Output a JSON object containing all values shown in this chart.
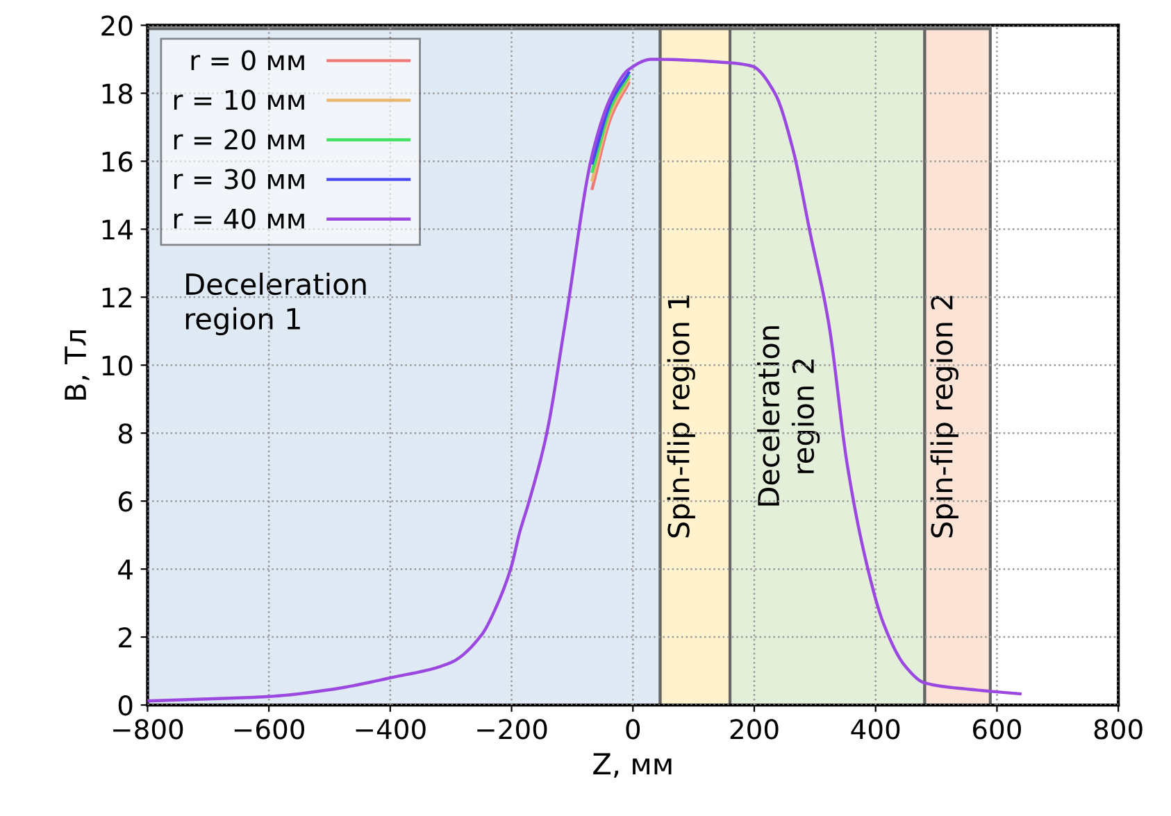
{
  "chart_data": {
    "type": "line",
    "xlabel": "Z, мм",
    "ylabel": "B, Тл",
    "xlim": [
      -800,
      800
    ],
    "xticks": [
      {
        "value": -800,
        "label": "−800"
      },
      {
        "value": -600,
        "label": "−600"
      },
      {
        "value": -400,
        "label": "−400"
      },
      {
        "value": -200,
        "label": "−200"
      },
      0,
      200,
      400,
      600,
      800
    ],
    "ylim": [
      0,
      20
    ],
    "yticks": [
      0,
      2,
      4,
      6,
      8,
      10,
      12,
      14,
      16,
      18,
      20
    ],
    "grid": true,
    "legend": "top left",
    "line_style": "solid",
    "x": [
      -800,
      -700,
      -600,
      -500,
      -400,
      -300,
      -250,
      -225,
      -200,
      -187,
      -171,
      -142,
      -112,
      -67,
      -36,
      -7,
      31,
      157,
      196,
      234,
      263,
      292,
      323,
      353,
      382,
      413,
      449,
      481,
      562,
      638
    ],
    "series": [
      {
        "name": "r = 0 мм",
        "color": "#f07878",
        "values": [
          null,
          null,
          null,
          null,
          null,
          null,
          null,
          null,
          null,
          null,
          null,
          null,
          null,
          15.2,
          17.3,
          18.3,
          null,
          null,
          null,
          null,
          null,
          null,
          null,
          null,
          null,
          null,
          null,
          null,
          null,
          null
        ]
      },
      {
        "name": "r = 10 мм",
        "color": "#e8b870",
        "values": [
          null,
          null,
          null,
          null,
          null,
          null,
          null,
          null,
          null,
          null,
          null,
          null,
          null,
          15.45,
          17.45,
          18.4,
          null,
          null,
          null,
          null,
          null,
          null,
          null,
          null,
          null,
          null,
          null,
          null,
          null,
          null
        ]
      },
      {
        "name": "r = 20 мм",
        "color": "#40e060",
        "values": [
          null,
          null,
          null,
          null,
          null,
          null,
          null,
          null,
          null,
          null,
          null,
          null,
          null,
          15.7,
          17.6,
          18.5,
          null,
          null,
          null,
          null,
          null,
          null,
          null,
          null,
          null,
          null,
          null,
          null,
          null,
          null
        ]
      },
      {
        "name": "r = 30 мм",
        "color": "#4848f0",
        "values": [
          null,
          null,
          null,
          null,
          null,
          null,
          null,
          null,
          null,
          null,
          null,
          null,
          null,
          15.95,
          17.75,
          18.6,
          null,
          null,
          null,
          null,
          null,
          null,
          null,
          null,
          null,
          null,
          null,
          null,
          null,
          null
        ]
      },
      {
        "name": "r = 40 мм",
        "color": "#9a48e0",
        "values": [
          0.12,
          0.18,
          0.25,
          0.45,
          0.8,
          1.25,
          2.05,
          2.9,
          4.1,
          5.06,
          6.0,
          8.0,
          11.2,
          16.2,
          17.9,
          18.7,
          19.0,
          18.9,
          18.8,
          18.0,
          16.4,
          13.9,
          11.2,
          7.1,
          4.4,
          2.4,
          1.14,
          0.65,
          0.45,
          0.33
        ]
      }
    ],
    "bands": [
      {
        "axis": "x",
        "from": -800,
        "to": 45,
        "label": "Deceleration\nregion 1",
        "color": "#e0eaf5"
      },
      {
        "axis": "x",
        "from": 45,
        "to": 160,
        "label": "Spin-flip region 1",
        "color": "#fff2cc"
      },
      {
        "axis": "x",
        "from": 160,
        "to": 481,
        "label": "Deceleration\nregion 2",
        "color": "#e3efd9"
      },
      {
        "axis": "x",
        "from": 481,
        "to": 589,
        "label": "Spin-flip region 2",
        "color": "#fbe4d6"
      }
    ]
  }
}
